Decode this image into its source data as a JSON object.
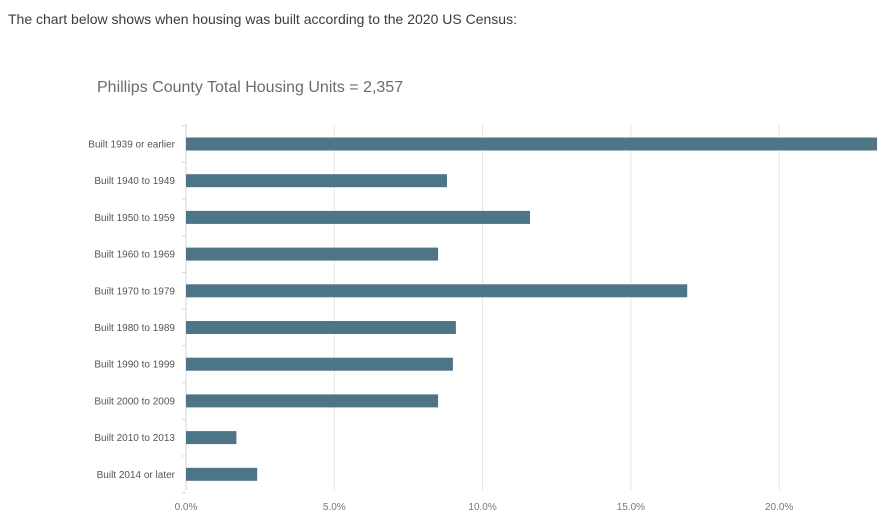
{
  "intro_text": "The chart below shows when housing was built according to the 2020 US Census:",
  "chart_data": {
    "type": "bar",
    "orientation": "horizontal",
    "title": "Phillips County Total Housing Units = 2,357",
    "categories": [
      "Built 1939 or earlier",
      "Built 1940 to 1949",
      "Built 1950 to 1959",
      "Built 1960 to 1969",
      "Built 1970 to 1979",
      "Built 1980 to 1989",
      "Built 1990 to 1999",
      "Built 2000 to 2009",
      "Built 2010 to 2013",
      "Built 2014 or later"
    ],
    "values": [
      23.3,
      8.8,
      11.6,
      8.5,
      16.9,
      9.1,
      9.0,
      8.5,
      1.7,
      2.4
    ],
    "xlim": [
      0,
      23.4
    ],
    "x_ticks": [
      0,
      5,
      10,
      15,
      20
    ],
    "x_tick_labels": [
      "0.0%",
      "5.0%",
      "10.0%",
      "15.0%",
      "20.0%"
    ],
    "xlabel": "",
    "ylabel": "",
    "grid": true,
    "legend": false,
    "bar_color": "#4e7585",
    "grid_color": "#e4e4e4"
  }
}
